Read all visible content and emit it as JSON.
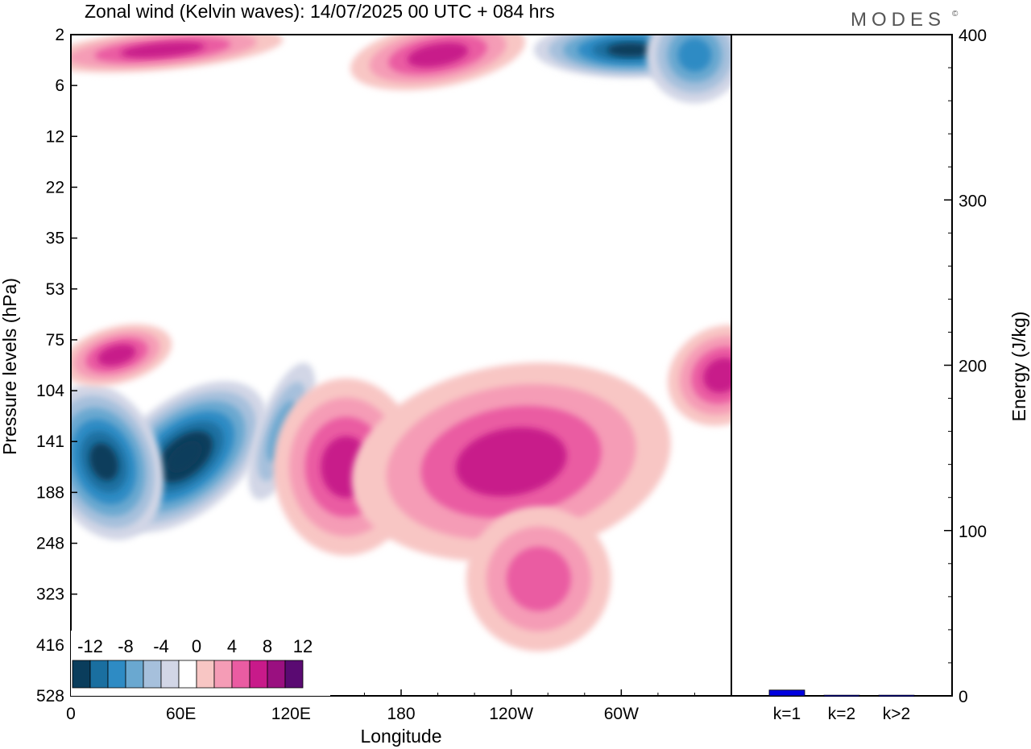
{
  "header": {
    "title": "Zonal wind (Kelvin waves):  14/07/2025  00 UTC  + 084 hrs",
    "brand": "MODES",
    "brand_mark": "©"
  },
  "chart_data": [
    {
      "type": "heatmap",
      "title": "Zonal wind (Kelvin waves):  14/07/2025  00 UTC  + 084 hrs",
      "xlabel": "Longitude",
      "ylabel": "Pressure levels (hPa)",
      "x_ticks": [
        "0",
        "60E",
        "120E",
        "180",
        "120W",
        "60W"
      ],
      "x_tick_values": [
        0,
        60,
        120,
        180,
        240,
        300
      ],
      "xlim": [
        0,
        360
      ],
      "y_ticks": [
        "2",
        "6",
        "12",
        "22",
        "35",
        "53",
        "75",
        "104",
        "141",
        "188",
        "248",
        "323",
        "416",
        "528"
      ],
      "y_level_index_range": [
        0,
        13
      ],
      "levels": [
        -14,
        -12,
        -10,
        -8,
        -6,
        -4,
        -2,
        2,
        4,
        6,
        8,
        10,
        12,
        14
      ],
      "legend": {
        "labels": [
          "-12",
          "-8",
          "-4",
          "0",
          "4",
          "8",
          "12"
        ],
        "placement": "bottom-left",
        "colors": [
          "#0a3d5c",
          "#1a6fa0",
          "#2e8bc4",
          "#6aa8d0",
          "#a6c0dc",
          "#d2d6e6",
          "#ffffff",
          "#f8c6c4",
          "#f59cb6",
          "#ea5ca2",
          "#c81a8a",
          "#9a1080",
          "#5a0a72"
        ]
      },
      "features": [
        {
          "sign": "negative",
          "lon": 62,
          "level_index": 8.3,
          "peak": -14
        },
        {
          "sign": "negative",
          "lon": 18,
          "level_index": 8.4,
          "peak": -12
        },
        {
          "sign": "negative",
          "lon": 115,
          "level_index": 7.8,
          "peak": -6
        },
        {
          "sign": "positive",
          "lon": 150,
          "level_index": 8.5,
          "peak": 8
        },
        {
          "sign": "positive",
          "lon": 240,
          "level_index": 8.4,
          "peak": 8
        },
        {
          "sign": "positive",
          "lon": 25,
          "level_index": 6.3,
          "peak": 8
        },
        {
          "sign": "positive",
          "lon": 355,
          "level_index": 6.7,
          "peak": 8
        },
        {
          "sign": "positive",
          "lon": 255,
          "level_index": 10.7,
          "peak": 6
        },
        {
          "sign": "positive",
          "lon": 200,
          "level_index": 0.4,
          "peak": 8
        },
        {
          "sign": "positive",
          "lon": 50,
          "level_index": 0.3,
          "peak": 8
        },
        {
          "sign": "negative",
          "lon": 305,
          "level_index": 0.3,
          "peak": -12
        },
        {
          "sign": "negative",
          "lon": 340,
          "level_index": 0.4,
          "peak": -8
        }
      ]
    },
    {
      "type": "bar",
      "categories": [
        "k=1",
        "k=2",
        "k>2"
      ],
      "values": [
        3.5,
        0.4,
        0.4
      ],
      "ylabel": "Energy (J/kg)",
      "ylim": [
        0,
        400
      ],
      "y_ticks": [
        "0",
        "100",
        "200",
        "300",
        "400"
      ],
      "y_tick_values": [
        0,
        100,
        200,
        300,
        400
      ],
      "bar_color": "#0000e0"
    }
  ]
}
